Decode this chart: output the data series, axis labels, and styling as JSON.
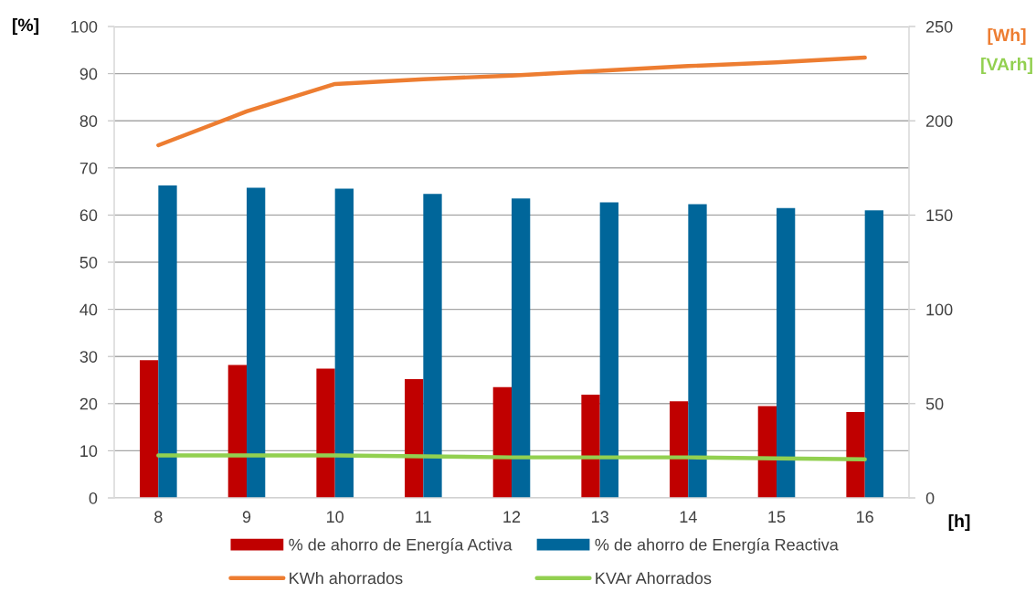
{
  "chart_data": {
    "type": "bar",
    "categories": [
      "8",
      "9",
      "10",
      "11",
      "12",
      "13",
      "14",
      "15",
      "16"
    ],
    "xlabel": "[h]",
    "ylabel": "[%]",
    "y2label": "[Wh]\n[VArh]",
    "ylim": [
      0,
      100
    ],
    "yticks": [
      0,
      10,
      20,
      30,
      40,
      50,
      60,
      70,
      80,
      90,
      100
    ],
    "y2lim": [
      0,
      250
    ],
    "y2ticks": [
      0,
      50,
      100,
      150,
      200,
      250
    ],
    "grid": "y",
    "legend": "bottom",
    "series": [
      {
        "name": "% de ahorro de Energía Activa",
        "color": "#c00000",
        "values": [
          29.2,
          28.2,
          27.4,
          25.2,
          23.5,
          21.9,
          20.5,
          19.5,
          18.2
        ]
      },
      {
        "name": "% de ahorro de Energía Reactiva",
        "color": "#00669a",
        "values": [
          66.3,
          65.8,
          65.6,
          64.5,
          63.5,
          62.7,
          62.3,
          61.5,
          61.0
        ]
      },
      {
        "name": "KWh ahorrados",
        "type": "line",
        "axis": "y2",
        "color": "#ed7d31",
        "values": [
          187,
          205,
          219.5,
          222,
          224,
          226.5,
          229,
          231,
          233.5
        ]
      },
      {
        "name": "KVAr Ahorrados",
        "type": "line",
        "axis": "y2",
        "color": "#92d050",
        "values": [
          22.5,
          22.5,
          22.5,
          22,
          21.5,
          21.5,
          21.5,
          21,
          20.5
        ]
      }
    ]
  }
}
